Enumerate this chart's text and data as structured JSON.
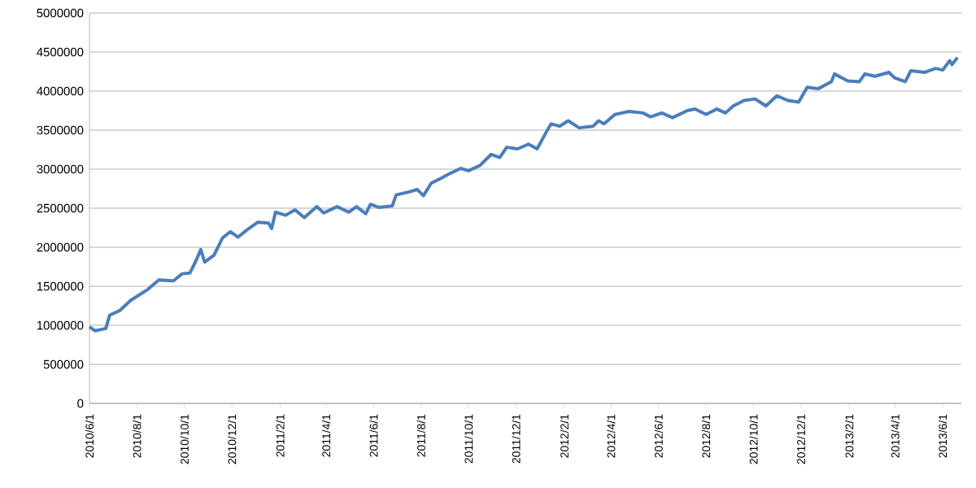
{
  "chart_data": {
    "type": "line",
    "grid": "y",
    "xlim": [
      "2010-06-01",
      "2013-06-25"
    ],
    "ylim": [
      0,
      5000000
    ],
    "yticks": [
      0,
      500000,
      1000000,
      1500000,
      2000000,
      2500000,
      3000000,
      3500000,
      4000000,
      4500000,
      5000000
    ],
    "xticks": [
      {
        "value": "2010-06-01",
        "label": "2010/6/1"
      },
      {
        "value": "2010-08-01",
        "label": "2010/8/1"
      },
      {
        "value": "2010-10-01",
        "label": "2010/10/1"
      },
      {
        "value": "2010-12-01",
        "label": "2010/12/1"
      },
      {
        "value": "2011-02-01",
        "label": "2011/2/1"
      },
      {
        "value": "2011-04-01",
        "label": "2011/4/1"
      },
      {
        "value": "2011-06-01",
        "label": "2011/6/1"
      },
      {
        "value": "2011-08-01",
        "label": "2011/8/1"
      },
      {
        "value": "2011-10-01",
        "label": "2011/10/1"
      },
      {
        "value": "2011-12-01",
        "label": "2011/12/1"
      },
      {
        "value": "2012-02-01",
        "label": "2012/2/1"
      },
      {
        "value": "2012-04-01",
        "label": "2012/4/1"
      },
      {
        "value": "2012-06-01",
        "label": "2012/6/1"
      },
      {
        "value": "2012-08-01",
        "label": "2012/8/1"
      },
      {
        "value": "2012-10-01",
        "label": "2012/10/1"
      },
      {
        "value": "2012-12-01",
        "label": "2012/12/1"
      },
      {
        "value": "2013-02-01",
        "label": "2013/2/1"
      },
      {
        "value": "2013-04-01",
        "label": "2013/4/1"
      },
      {
        "value": "2013-06-01",
        "label": "2013/6/1"
      }
    ],
    "x": [
      "2010-06-01",
      "2010-06-08",
      "2010-06-22",
      "2010-06-27",
      "2010-07-10",
      "2010-07-24",
      "2010-08-15",
      "2010-08-29",
      "2010-09-17",
      "2010-09-28",
      "2010-10-08",
      "2010-10-15",
      "2010-10-22",
      "2010-10-27",
      "2010-11-08",
      "2010-11-19",
      "2010-11-29",
      "2010-12-09",
      "2010-12-20",
      "2011-01-03",
      "2011-01-17",
      "2011-01-21",
      "2011-01-26",
      "2011-02-08",
      "2011-02-20",
      "2011-03-04",
      "2011-03-20",
      "2011-03-29",
      "2011-04-15",
      "2011-04-30",
      "2011-05-10",
      "2011-05-22",
      "2011-05-28",
      "2011-06-08",
      "2011-06-25",
      "2011-06-30",
      "2011-07-13",
      "2011-07-27",
      "2011-08-04",
      "2011-08-14",
      "2011-08-28",
      "2011-09-04",
      "2011-09-21",
      "2011-10-01",
      "2011-10-16",
      "2011-10-30",
      "2011-11-10",
      "2011-11-19",
      "2011-12-03",
      "2011-12-17",
      "2011-12-28",
      "2012-01-08",
      "2012-01-15",
      "2012-01-26",
      "2012-02-06",
      "2012-02-20",
      "2012-03-09",
      "2012-03-16",
      "2012-03-23",
      "2012-04-06",
      "2012-04-24",
      "2012-05-12",
      "2012-05-22",
      "2012-06-05",
      "2012-06-19",
      "2012-07-08",
      "2012-07-18",
      "2012-08-01",
      "2012-08-15",
      "2012-08-26",
      "2012-09-05",
      "2012-09-19",
      "2012-10-03",
      "2012-10-17",
      "2012-10-31",
      "2012-11-14",
      "2012-11-28",
      "2012-12-09",
      "2012-12-23",
      "2013-01-09",
      "2013-01-13",
      "2013-01-30",
      "2013-02-14",
      "2013-02-21",
      "2013-03-06",
      "2013-03-24",
      "2013-03-31",
      "2013-04-14",
      "2013-04-21",
      "2013-05-09",
      "2013-05-23",
      "2013-06-01",
      "2013-06-10",
      "2013-06-13",
      "2013-06-20"
    ],
    "series": [
      {
        "color": "#4a7ebb",
        "values": [
          980000,
          930000,
          960000,
          1130000,
          1190000,
          1320000,
          1460000,
          1580000,
          1570000,
          1660000,
          1670000,
          1810000,
          1970000,
          1810000,
          1900000,
          2120000,
          2200000,
          2130000,
          2220000,
          2320000,
          2310000,
          2240000,
          2450000,
          2410000,
          2480000,
          2380000,
          2520000,
          2440000,
          2520000,
          2450000,
          2520000,
          2430000,
          2550000,
          2510000,
          2530000,
          2670000,
          2700000,
          2740000,
          2660000,
          2820000,
          2890000,
          2930000,
          3010000,
          2980000,
          3050000,
          3190000,
          3150000,
          3280000,
          3260000,
          3320000,
          3260000,
          3460000,
          3580000,
          3550000,
          3620000,
          3530000,
          3550000,
          3620000,
          3580000,
          3700000,
          3740000,
          3720000,
          3670000,
          3720000,
          3660000,
          3750000,
          3770000,
          3700000,
          3770000,
          3720000,
          3810000,
          3880000,
          3900000,
          3810000,
          3940000,
          3880000,
          3860000,
          4050000,
          4030000,
          4120000,
          4220000,
          4130000,
          4120000,
          4220000,
          4190000,
          4240000,
          4170000,
          4120000,
          4260000,
          4240000,
          4290000,
          4270000,
          4390000,
          4340000,
          4430000
        ]
      }
    ]
  }
}
